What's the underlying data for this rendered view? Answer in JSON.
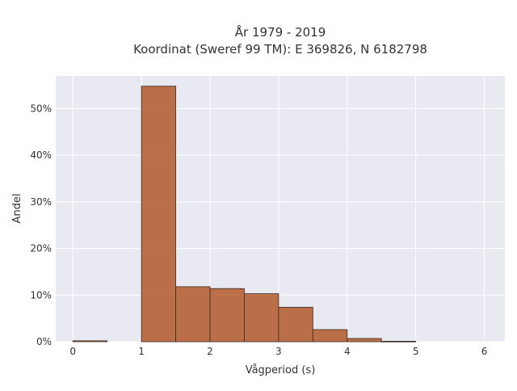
{
  "chart_data": {
    "type": "bar",
    "title_lines": [
      "År 1979 - 2019",
      "Koordinat (Sweref 99 TM): E 369826, N 6182798"
    ],
    "xlabel": "Vågperiod (s)",
    "ylabel": "Andel",
    "xlim": [
      -0.25,
      6.3
    ],
    "ylim": [
      0,
      0.57
    ],
    "x_ticks": [
      0,
      1,
      2,
      3,
      4,
      5,
      6
    ],
    "x_tick_labels": [
      "0",
      "1",
      "2",
      "3",
      "4",
      "5",
      "6"
    ],
    "y_ticks": [
      0,
      0.1,
      0.2,
      0.3,
      0.4,
      0.5
    ],
    "y_tick_labels": [
      "0%",
      "10%",
      "20%",
      "30%",
      "40%",
      "50%"
    ],
    "bin_width": 0.5,
    "bin_starts": [
      0,
      0.5,
      1.0,
      1.5,
      2.0,
      2.5,
      3.0,
      3.5,
      4.0,
      4.5,
      5.0,
      5.5
    ],
    "values": [
      0.002,
      0,
      0.548,
      0.118,
      0.114,
      0.103,
      0.074,
      0.026,
      0.007,
      0.001,
      0,
      0
    ],
    "grid": true,
    "bar_color": "#b5643a",
    "bar_edge_color": "#3a2a20",
    "plot_background": "#e9e9f1",
    "grid_color": "#ffffff"
  }
}
